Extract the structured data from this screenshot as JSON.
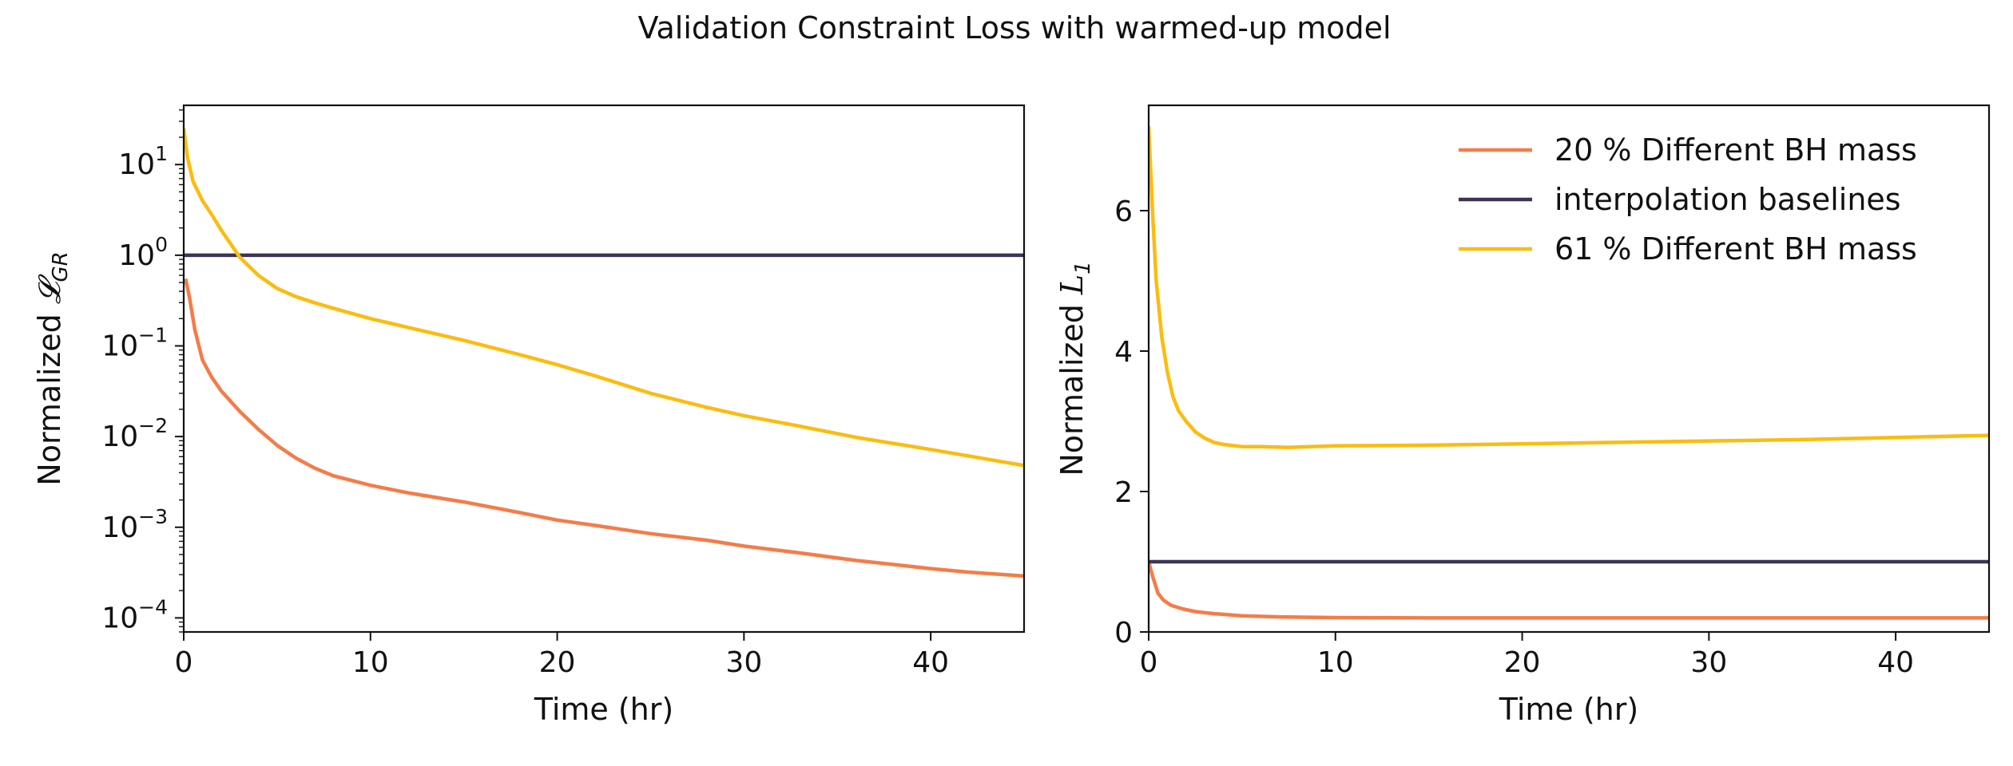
{
  "figure_title": "Validation Constraint Loss with warmed-up model",
  "legend": [
    {
      "label": "20 % Different BH mass",
      "color": "#f47c48"
    },
    {
      "label": "interpolation baselines",
      "color": "#3e3357"
    },
    {
      "label": "61 % Different BH mass",
      "color": "#fbbc11"
    }
  ],
  "chart_data": [
    {
      "type": "line",
      "title": "",
      "xlabel": "Time (hr)",
      "ylabel": "Normalized 𝓛_GR",
      "ylabel_main": "Normalized ",
      "ylabel_sym": "𝓛",
      "ylabel_sub": "GR",
      "yscale": "log",
      "xlim": [
        0,
        45
      ],
      "ylim": [
        7e-05,
        45
      ],
      "xticks": [
        0,
        10,
        20,
        30,
        40
      ],
      "xtick_labels": [
        "0",
        "10",
        "20",
        "30",
        "40"
      ],
      "yticks": [
        {
          "value": 10,
          "base": "10",
          "exp": "1"
        },
        {
          "value": 1,
          "base": "10",
          "exp": "0"
        },
        {
          "value": 0.1,
          "base": "10",
          "exp": "−1"
        },
        {
          "value": 0.01,
          "base": "10",
          "exp": "−2"
        },
        {
          "value": 0.001,
          "base": "10",
          "exp": "−3"
        },
        {
          "value": 0.0001,
          "base": "10",
          "exp": "−4"
        }
      ],
      "series": [
        {
          "name": "20 % Different BH mass",
          "color": "#f47c48",
          "x": [
            0.1,
            0.3,
            0.6,
            1,
            1.5,
            2,
            3,
            4,
            5,
            6,
            7,
            8,
            10,
            12,
            15,
            18,
            20,
            22,
            25,
            28,
            30,
            33,
            36,
            40,
            42,
            45
          ],
          "y": [
            0.55,
            0.35,
            0.15,
            0.07,
            0.045,
            0.032,
            0.019,
            0.012,
            0.008,
            0.0058,
            0.0045,
            0.0037,
            0.0029,
            0.0024,
            0.0019,
            0.00145,
            0.0012,
            0.00105,
            0.00085,
            0.00072,
            0.00062,
            0.00052,
            0.00043,
            0.00035,
            0.00032,
            0.00029
          ]
        },
        {
          "name": "interpolation baselines",
          "color": "#3e3357",
          "x": [
            0,
            45
          ],
          "y": [
            1,
            1
          ]
        },
        {
          "name": "61 % Different BH mass",
          "color": "#fbbc11",
          "x": [
            0,
            0.2,
            0.5,
            1,
            1.5,
            2,
            2.5,
            3,
            4,
            5,
            6,
            7,
            8,
            10,
            12,
            15,
            18,
            20,
            22,
            25,
            28,
            30,
            33,
            36,
            40,
            45
          ],
          "y": [
            25,
            12,
            6.5,
            4,
            2.8,
            1.9,
            1.35,
            0.95,
            0.6,
            0.43,
            0.35,
            0.3,
            0.26,
            0.2,
            0.16,
            0.115,
            0.08,
            0.062,
            0.047,
            0.03,
            0.021,
            0.017,
            0.013,
            0.0098,
            0.0072,
            0.0048
          ]
        }
      ]
    },
    {
      "type": "line",
      "title": "",
      "xlabel": "Time (hr)",
      "ylabel": "Normalized L_1",
      "ylabel_main": "Normalized ",
      "ylabel_sym": "L",
      "ylabel_sub": "1",
      "yscale": "linear",
      "xlim": [
        0,
        45
      ],
      "ylim": [
        0,
        7.5
      ],
      "xticks": [
        0,
        10,
        20,
        30,
        40
      ],
      "xtick_labels": [
        "0",
        "10",
        "20",
        "30",
        "40"
      ],
      "yticks": [
        {
          "value": 0,
          "label": "0"
        },
        {
          "value": 2,
          "label": "2"
        },
        {
          "value": 4,
          "label": "4"
        },
        {
          "value": 6,
          "label": "6"
        }
      ],
      "legend_position": "top-right",
      "series": [
        {
          "name": "20 % Different BH mass",
          "color": "#f47c48",
          "x": [
            0,
            0.2,
            0.5,
            0.8,
            1.2,
            1.8,
            2.5,
            3.5,
            5,
            7,
            10,
            15,
            20,
            25,
            30,
            35,
            40,
            45
          ],
          "y": [
            1.0,
            0.8,
            0.55,
            0.45,
            0.38,
            0.33,
            0.29,
            0.26,
            0.23,
            0.215,
            0.205,
            0.2,
            0.2,
            0.2,
            0.2,
            0.2,
            0.2,
            0.2
          ]
        },
        {
          "name": "interpolation baselines",
          "color": "#3e3357",
          "x": [
            0,
            45
          ],
          "y": [
            1,
            1
          ]
        },
        {
          "name": "61 % Different BH mass",
          "color": "#fbbc11",
          "x": [
            0,
            0.2,
            0.4,
            0.7,
            1,
            1.3,
            1.6,
            2,
            2.5,
            3,
            3.5,
            4,
            5,
            6,
            7.5,
            10,
            15,
            20,
            25,
            30,
            35,
            40,
            45
          ],
          "y": [
            7.2,
            6.0,
            5.0,
            4.2,
            3.7,
            3.35,
            3.15,
            3.0,
            2.85,
            2.76,
            2.7,
            2.67,
            2.64,
            2.64,
            2.63,
            2.65,
            2.66,
            2.68,
            2.7,
            2.72,
            2.74,
            2.77,
            2.8
          ]
        }
      ]
    }
  ]
}
